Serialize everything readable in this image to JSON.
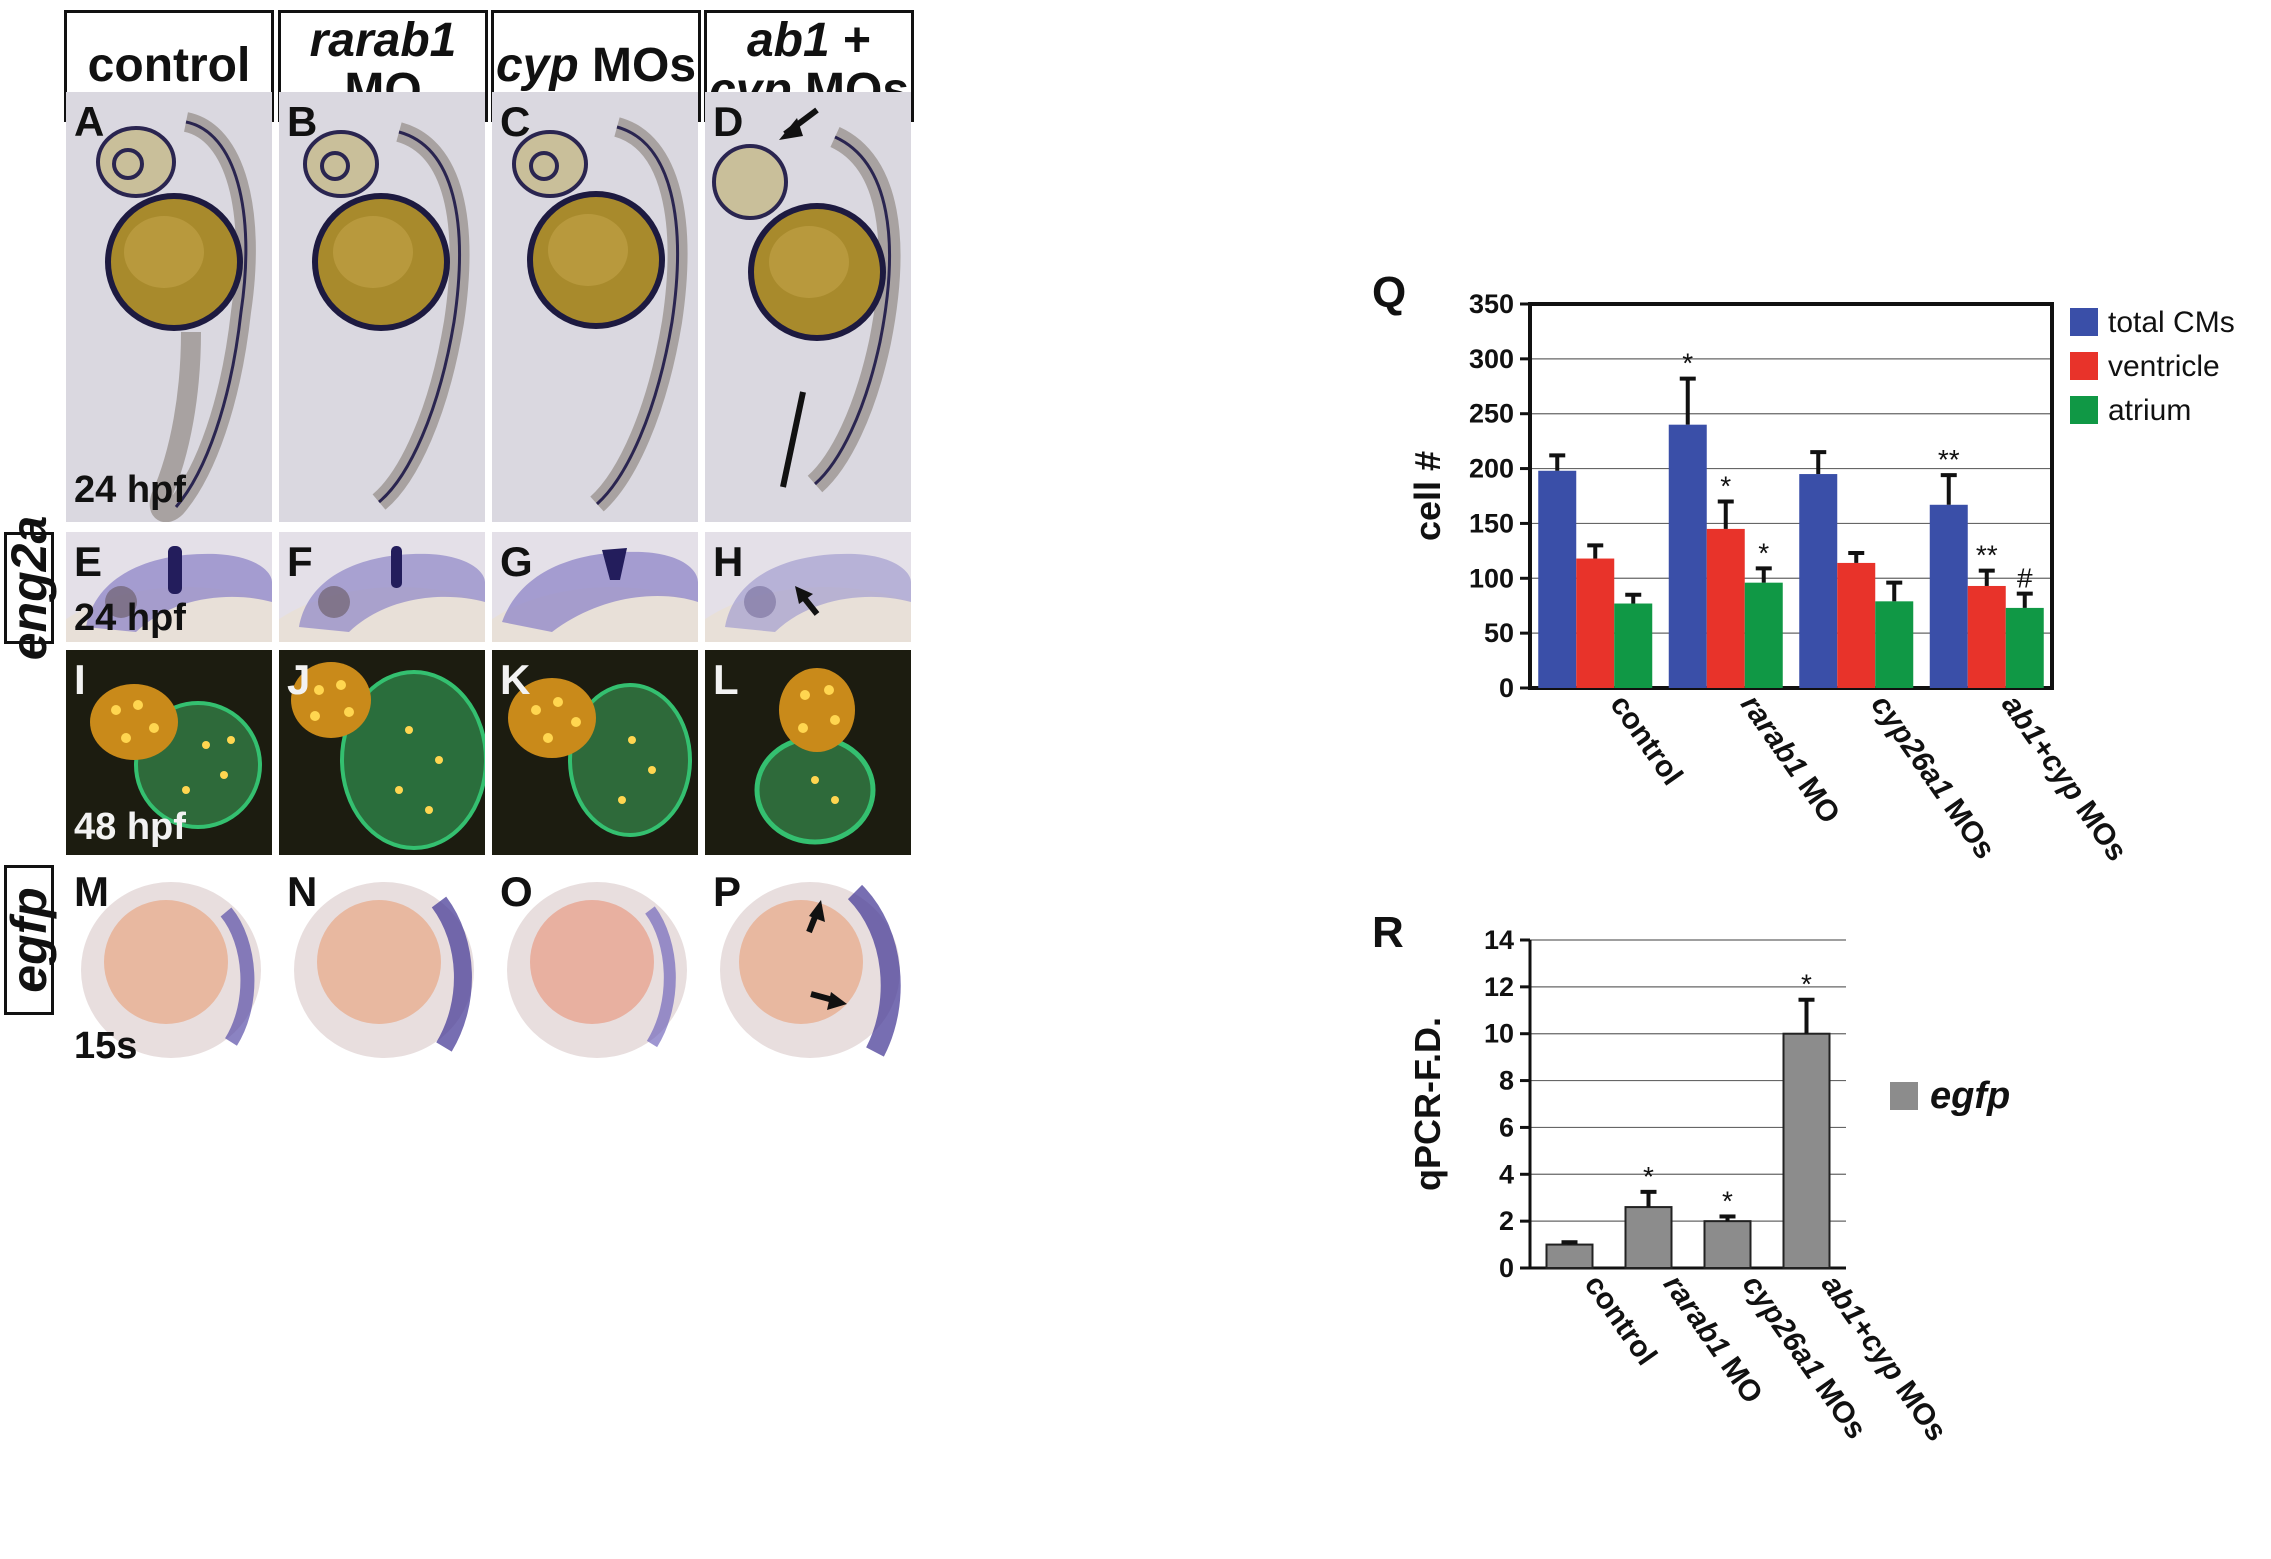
{
  "headers": [
    {
      "id": "control",
      "line1": "control",
      "line1_italic": "",
      "line2": "",
      "line2_italic": ""
    },
    {
      "id": "rarab1",
      "line1": " MO",
      "line1_italic": "rarab1",
      "line2": "",
      "line2_italic": ""
    },
    {
      "id": "cyp",
      "line1": " MOs",
      "line1_italic": "cyp",
      "line2": "",
      "line2_italic": ""
    },
    {
      "id": "ab1cyp",
      "line1": " +",
      "line1_italic": "ab1",
      "line2": " MOs",
      "line2_italic": "cyp"
    }
  ],
  "row_labels": {
    "row2": "eng2a",
    "row4": "egfp"
  },
  "panels": {
    "A": "A",
    "B": "B",
    "C": "C",
    "D": "D",
    "E": "E",
    "F": "F",
    "G": "G",
    "H": "H",
    "I": "I",
    "J": "J",
    "K": "K",
    "L": "L",
    "M": "M",
    "N": "N",
    "O": "O",
    "P": "P"
  },
  "stages": {
    "row1": "24 hpf",
    "row2": "24 hpf",
    "row3": "48 hpf",
    "row4": "15s"
  },
  "colors": {
    "total": "#3a4fa8",
    "ventricle": "#e8332a",
    "atrium": "#109845",
    "egfp": "#8c8c8c",
    "embryo_bg": "#d9d6df",
    "fluor_bg": "#1c1c10"
  },
  "chart_data": [
    {
      "panel": "Q",
      "type": "bar",
      "ylabel": "cell #",
      "ylim": [
        0,
        350
      ],
      "yticks": [
        0,
        50,
        100,
        150,
        200,
        250,
        300,
        350
      ],
      "grid": true,
      "legend_position": "top-right",
      "categories": [
        "control",
        "rarab1 MO",
        "cyp26a1 MOs",
        "ab1+cyp MOs"
      ],
      "series": [
        {
          "name": "total CMs",
          "values": [
            198,
            240,
            195,
            167
          ],
          "errors": [
            14,
            42,
            20,
            27
          ],
          "marks": [
            "",
            "*",
            "",
            "**"
          ]
        },
        {
          "name": "ventricle",
          "values": [
            118,
            145,
            114,
            93
          ],
          "errors": [
            12,
            25,
            9,
            14
          ],
          "marks": [
            "",
            "*",
            "",
            "**"
          ]
        },
        {
          "name": "atrium",
          "values": [
            77,
            96,
            79,
            73
          ],
          "errors": [
            8,
            13,
            17,
            13
          ],
          "marks": [
            "",
            "*",
            "",
            "#"
          ]
        }
      ]
    },
    {
      "panel": "R",
      "type": "bar",
      "ylabel": "qPCR-F.D.",
      "ylim": [
        0,
        14
      ],
      "yticks": [
        0,
        2,
        4,
        6,
        8,
        10,
        12,
        14
      ],
      "grid": true,
      "legend_position": "right",
      "categories": [
        "control",
        "rarab1 MO",
        "cyp26a1 MOs",
        "ab1+cyp MOs"
      ],
      "series": [
        {
          "name": "egfp",
          "values": [
            1.0,
            2.6,
            2.0,
            10.0
          ],
          "errors": [
            0.1,
            0.65,
            0.2,
            1.45
          ],
          "marks": [
            "",
            "*",
            "*",
            "*"
          ]
        }
      ]
    }
  ]
}
